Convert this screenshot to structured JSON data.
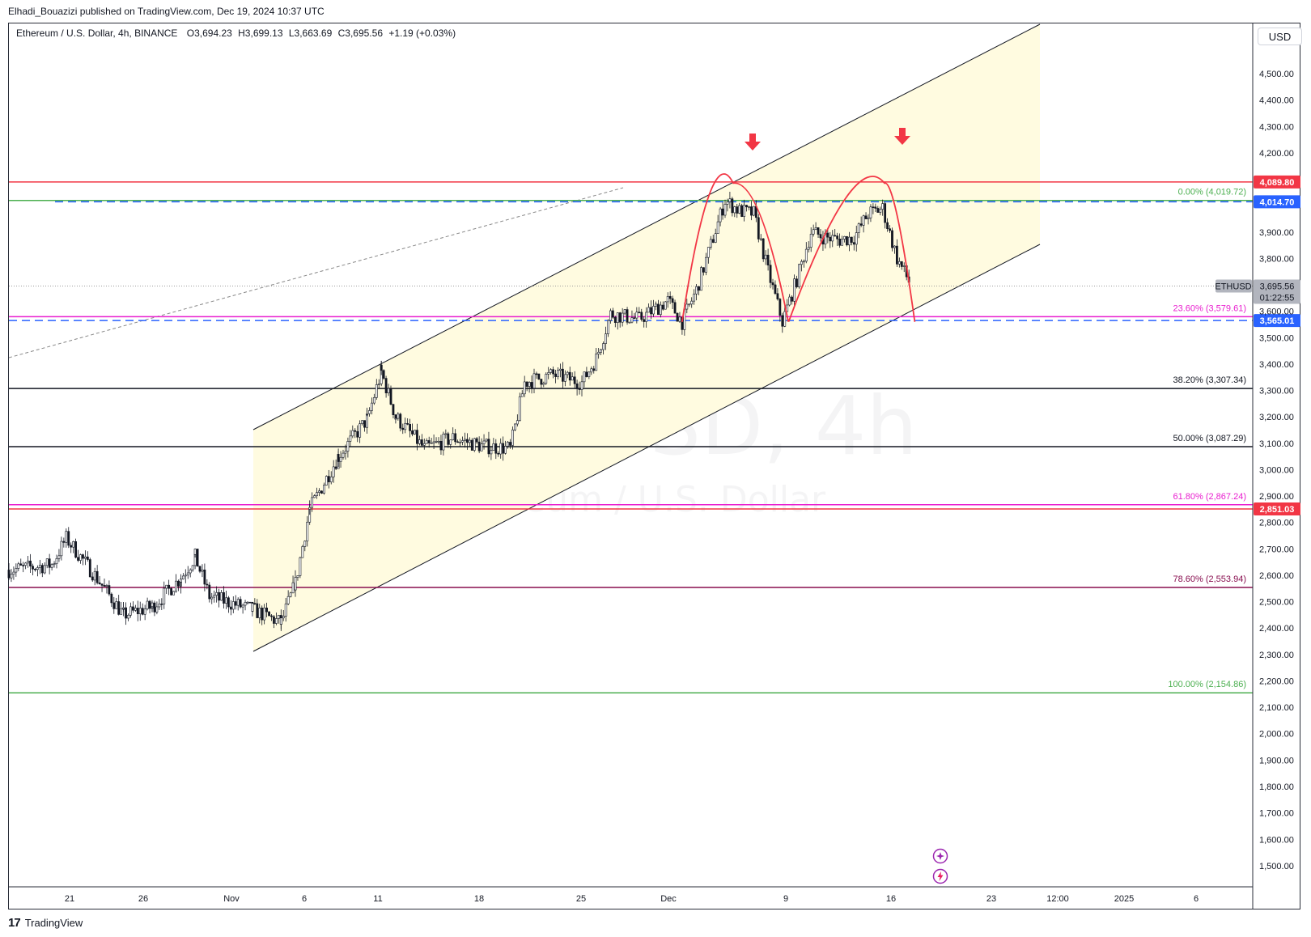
{
  "header": {
    "published": "Elhadi_Bouazizi published on TradingView.com, Dec 19, 2024 10:37 UTC"
  },
  "legend": {
    "symbol": "Ethereum / U.S. Dollar, 4h, BINANCE",
    "open": "O3,694.23",
    "high": "H3,699.13",
    "low": "L3,663.69",
    "close": "C3,695.56",
    "change": "+1.19 (+0.03%)"
  },
  "currency_button": "USD",
  "watermark": {
    "line1": "ETHUSD, 4h",
    "line2": "Ethereum / U.S. Dollar"
  },
  "footer": {
    "brand": "TradingView"
  },
  "colors": {
    "channel_fill": "#fffbe0",
    "candle": "#131722",
    "resistance_red": "#f23645",
    "fib_green": "#4caf50",
    "fib_magenta": "#e91ecf",
    "fib_darkred": "#880e4f",
    "dashed_blue": "#2962ff",
    "arrow_red": "#f23645"
  },
  "chart_data": {
    "type": "candlestick",
    "symbol": "ETHUSD",
    "interval": "4h",
    "ylim": [
      1420,
      4690
    ],
    "y_ticks": [
      "4,500.00",
      "4,400.00",
      "4,300.00",
      "4,200.00",
      "3,900.00",
      "3,800.00",
      "3,600.00",
      "3,500.00",
      "3,400.00",
      "3,300.00",
      "3,200.00",
      "3,100.00",
      "3,000.00",
      "2,900.00",
      "2,800.00",
      "2,700.00",
      "2,600.00",
      "2,500.00",
      "2,400.00",
      "2,300.00",
      "2,200.00",
      "2,100.00",
      "2,000.00",
      "1,900.00",
      "1,800.00",
      "1,700.00",
      "1,600.00",
      "1,500.00"
    ],
    "x_ticks": [
      "21",
      "26",
      "Nov",
      "6",
      "11",
      "18",
      "25",
      "Dec",
      "9",
      "16",
      "23",
      "12:00",
      "2025",
      "6"
    ],
    "price_path": [
      [
        "Oct 17",
        2620
      ],
      [
        "Oct 20",
        2640
      ],
      [
        "Oct 21",
        2740
      ],
      [
        "Oct 23",
        2600
      ],
      [
        "Oct 25",
        2450
      ],
      [
        "Oct 27",
        2480
      ],
      [
        "Oct 29",
        2590
      ],
      [
        "Oct 30",
        2670
      ],
      [
        "Oct 31",
        2520
      ],
      [
        "Nov 3",
        2470
      ],
      [
        "Nov 5",
        2420
      ],
      [
        "Nov 6",
        2570
      ],
      [
        "Nov 7",
        2850
      ],
      [
        "Nov 9",
        3050
      ],
      [
        "Nov 11",
        3190
      ],
      [
        "Nov 12",
        3370
      ],
      [
        "Nov 13",
        3200
      ],
      [
        "Nov 15",
        3080
      ],
      [
        "Nov 17",
        3120
      ],
      [
        "Nov 19",
        3090
      ],
      [
        "Nov 21",
        3080
      ],
      [
        "Nov 22",
        3330
      ],
      [
        "Nov 24",
        3360
      ],
      [
        "Nov 26",
        3330
      ],
      [
        "Nov 27",
        3420
      ],
      [
        "Nov 28",
        3590
      ],
      [
        "Nov 30",
        3570
      ],
      [
        "Dec 2",
        3640
      ],
      [
        "Dec 3",
        3560
      ],
      [
        "Dec 4",
        3680
      ],
      [
        "Dec 5",
        3850
      ],
      [
        "Dec 6",
        4020
      ],
      [
        "Dec 7",
        3980
      ],
      [
        "Dec 8",
        3970
      ],
      [
        "Dec 9",
        3750
      ],
      [
        "Dec 10",
        3560
      ],
      [
        "Dec 11",
        3720
      ],
      [
        "Dec 12",
        3900
      ],
      [
        "Dec 13",
        3880
      ],
      [
        "Dec 14",
        3870
      ],
      [
        "Dec 15",
        3880
      ],
      [
        "Dec 16",
        3970
      ],
      [
        "Dec 17",
        3990
      ],
      [
        "Dec 18",
        3800
      ],
      [
        "Dec 19",
        3695.56
      ]
    ],
    "horizontal_levels": [
      {
        "price": 4089.8,
        "label": "4,089.80",
        "color": "#f23645",
        "style": "solid"
      },
      {
        "price": 4014.7,
        "label": "4,014.70",
        "color": "#2962ff",
        "style": "dashed"
      },
      {
        "price": 3565.01,
        "label": "3,565.01",
        "color": "#2962ff",
        "style": "dashed"
      },
      {
        "price": 2851.03,
        "label": "2,851.03",
        "color": "#f23645",
        "style": "solid"
      }
    ],
    "fibonacci": [
      {
        "label": "0.00% (4,019.72)",
        "price": 4019.72,
        "color": "#4caf50"
      },
      {
        "label": "23.60% (3,579.61)",
        "price": 3579.61,
        "color": "#e91ecf"
      },
      {
        "label": "38.20% (3,307.34)",
        "price": 3307.34,
        "color": "#131722"
      },
      {
        "label": "50.00% (3,087.29)",
        "price": 3087.29,
        "color": "#131722"
      },
      {
        "label": "61.80% (2,867.24)",
        "price": 2867.24,
        "color": "#e91ecf"
      },
      {
        "label": "78.60% (2,553.94)",
        "price": 2553.94,
        "color": "#880e4f"
      },
      {
        "label": "100.00% (2,154.86)",
        "price": 2154.86,
        "color": "#4caf50"
      }
    ],
    "last_price": {
      "symbol_tag": "ETHUSD",
      "price": "3,695.56",
      "countdown": "01:22:55"
    },
    "annotations": [
      "double-top arcs",
      "two down arrows",
      "ascending channel"
    ]
  }
}
